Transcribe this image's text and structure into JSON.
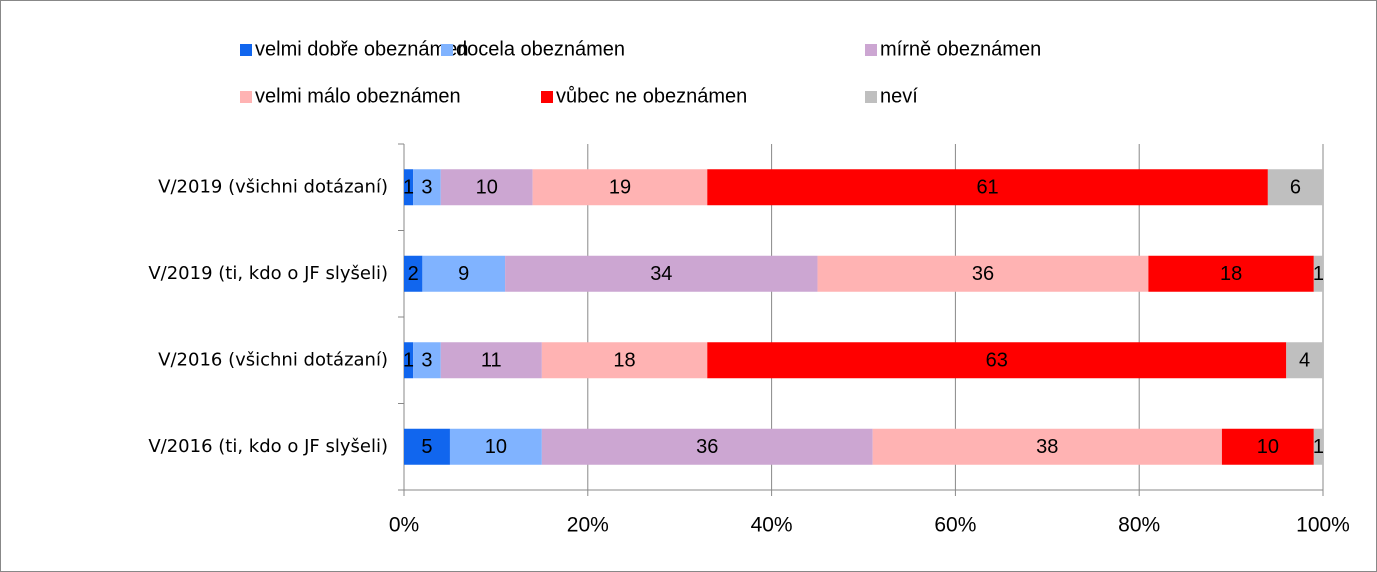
{
  "chart_data": {
    "type": "stacked-bar-horizontal",
    "categories": [
      "V/2019 (všichni dotázaní)",
      "V/2019 (ti, kdo o JF slyšeli)",
      "V/2016 (všichni dotázaní)",
      "V/2016 (ti, kdo o JF slyšeli)"
    ],
    "series": [
      {
        "name": "velmi dobře obeznámen",
        "color": "#1166ee",
        "values": [
          1,
          2,
          1,
          5
        ]
      },
      {
        "name": "docela obeznámen",
        "color": "#80b3ff",
        "values": [
          3,
          9,
          3,
          10
        ]
      },
      {
        "name": "mírně obeznámen",
        "color": "#cca6d2",
        "values": [
          10,
          34,
          11,
          36
        ]
      },
      {
        "name": "velmi málo obeznámen",
        "color": "#ffb3b3",
        "values": [
          19,
          36,
          18,
          38
        ]
      },
      {
        "name": "vůbec ne obeznámen",
        "color": "#ff0000",
        "values": [
          61,
          18,
          63,
          10
        ]
      },
      {
        "name": "neví",
        "color": "#bfbfbf",
        "values": [
          6,
          1,
          4,
          1
        ]
      }
    ],
    "xlim": [
      0,
      100
    ],
    "xticks": [
      {
        "value": 0,
        "label": "0%"
      },
      {
        "value": 20,
        "label": "20%"
      },
      {
        "value": 40,
        "label": "40%"
      },
      {
        "value": 60,
        "label": "60%"
      },
      {
        "value": 80,
        "label": "80%"
      },
      {
        "value": 100,
        "label": "100%"
      }
    ],
    "grid": true,
    "legend": "top"
  }
}
